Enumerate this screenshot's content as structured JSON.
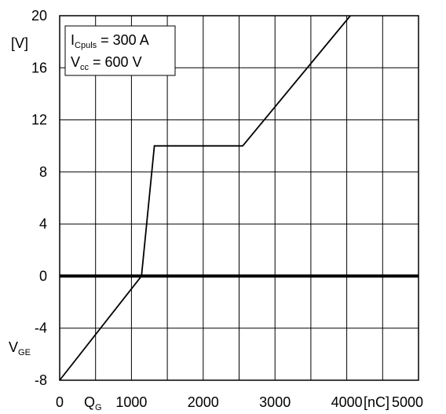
{
  "chart_data": {
    "type": "line",
    "title": "",
    "xlabel": "Q",
    "xlabel_sub": "G",
    "xunit": "[nC]",
    "ylabel": "V",
    "ylabel_sub": "GE",
    "yunit": "[V]",
    "xlim": [
      0,
      5000
    ],
    "ylim": [
      -8,
      20
    ],
    "x_ticks": [
      0,
      1000,
      2000,
      3000,
      4000,
      5000
    ],
    "x_tick_labels": [
      "0",
      "1000",
      "2000",
      "3000",
      "4000",
      "5000"
    ],
    "y_ticks": [
      -8,
      -4,
      0,
      4,
      8,
      12,
      16,
      20
    ],
    "y_tick_labels": [
      "-8",
      "-4",
      "0",
      "4",
      "8",
      "12",
      "16",
      "20"
    ],
    "x_minor_grid": [
      500,
      1500,
      2500,
      3500,
      4500
    ],
    "grid": true,
    "series": [
      {
        "x": [
          0,
          1140,
          1320,
          2550,
          4050
        ],
        "y": [
          -8,
          0,
          10,
          10,
          20
        ]
      }
    ],
    "annotation": {
      "line1_main": "I",
      "line1_sub": "Cpuls",
      "line1_rest": " = 300 A",
      "line2_main": "V",
      "line2_sub": "cc",
      "line2_rest": "  = 600 V"
    }
  }
}
